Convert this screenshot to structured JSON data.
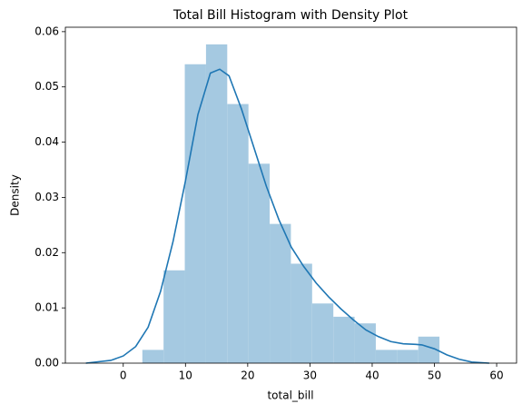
{
  "chart_data": {
    "type": "histogram",
    "title": "Total Bill Histogram with Density Plot",
    "xlabel": "total_bill",
    "ylabel": "Density",
    "bins": [
      3.07,
      6.48,
      9.89,
      13.3,
      16.71,
      20.12,
      23.53,
      26.94,
      30.35,
      33.76,
      37.17,
      40.58,
      43.99,
      47.4,
      50.81
    ],
    "values": [
      0.0024,
      0.0168,
      0.0541,
      0.0577,
      0.0469,
      0.0361,
      0.0252,
      0.018,
      0.0108,
      0.0084,
      0.0072,
      0.0024,
      0.0024,
      0.0048
    ],
    "color": "#a5c9e1",
    "kde": {
      "color": "#1f77b4",
      "x": [
        -6,
        -2,
        0,
        2,
        4,
        6,
        8,
        10,
        12,
        14,
        15.5,
        17,
        19,
        21,
        23,
        25,
        27,
        29,
        31,
        33,
        35,
        37,
        39,
        41,
        43,
        45,
        47,
        48,
        50,
        52,
        54,
        56,
        58.8
      ],
      "values": [
        0.0,
        0.0005,
        0.0013,
        0.003,
        0.0065,
        0.013,
        0.022,
        0.033,
        0.045,
        0.0525,
        0.0532,
        0.052,
        0.046,
        0.039,
        0.032,
        0.026,
        0.021,
        0.0175,
        0.0145,
        0.012,
        0.0098,
        0.0078,
        0.006,
        0.0048,
        0.0039,
        0.0035,
        0.0034,
        0.0033,
        0.0026,
        0.0015,
        0.0007,
        0.0002,
        0.0
      ]
    },
    "xlim": [
      -9.3,
      63.2
    ],
    "ylim": [
      0,
      0.0608
    ],
    "xticks": [
      0,
      10,
      20,
      30,
      40,
      50,
      60
    ],
    "yticks": [
      {
        "value": 0,
        "label": "0.00"
      },
      {
        "value": 0.01,
        "label": "0.01"
      },
      {
        "value": 0.02,
        "label": "0.02"
      },
      {
        "value": 0.03,
        "label": "0.03"
      },
      {
        "value": 0.04,
        "label": "0.04"
      },
      {
        "value": 0.05,
        "label": "0.05"
      },
      {
        "value": 0.06,
        "label": "0.06"
      }
    ]
  }
}
